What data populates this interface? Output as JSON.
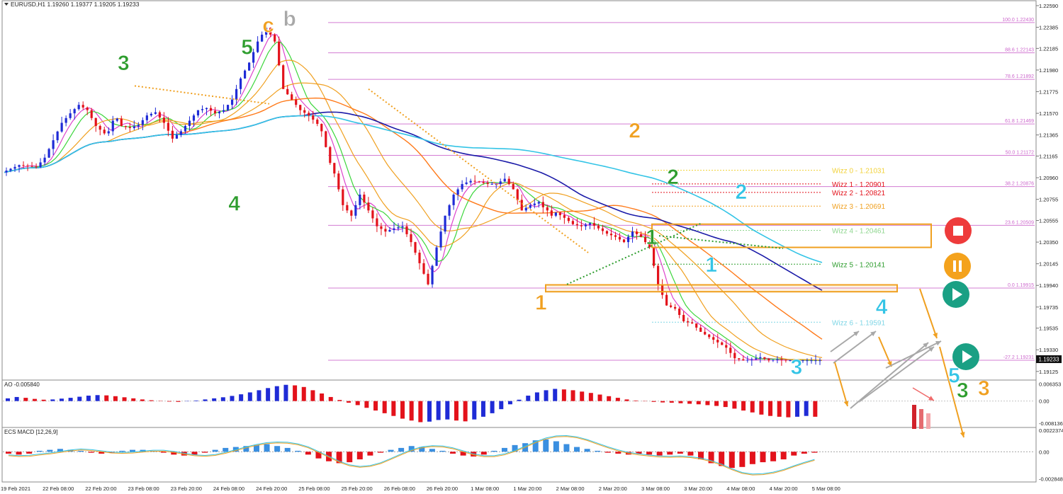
{
  "header": {
    "symbol_info": "EURUSD,H1  1.19260 1.19377 1.19205 1.19233"
  },
  "colors": {
    "bull": "#1f2bd6",
    "bear": "#e3121b",
    "fib": "#cc66cc",
    "orange": "#f0a020",
    "green_wave": "#2e9d2e",
    "cyan_wave": "#33c4e6",
    "grey_wave": "#a8a8a8"
  },
  "chart_data": {
    "type": "line",
    "title": "",
    "price_axis": {
      "ticks": [
        "1.22590",
        "1.22385",
        "1.22185",
        "1.21980",
        "1.21775",
        "1.21570",
        "1.21365",
        "1.21165",
        "1.20960",
        "1.20755",
        "1.20555",
        "1.20350",
        "1.20145",
        "1.19940",
        "1.19735",
        "1.19535",
        "1.19330",
        "1.19125"
      ],
      "current_price": "1.19233",
      "ylim": [
        1.1905,
        1.2263
      ]
    },
    "time_axis": {
      "ticks": [
        "19 Feb 2021",
        "22 Feb 08:00",
        "22 Feb 20:00",
        "23 Feb 08:00",
        "23 Feb 20:00",
        "24 Feb 08:00",
        "24 Feb 20:00",
        "25 Feb 08:00",
        "25 Feb 20:00",
        "26 Feb 08:00",
        "26 Feb 20:00",
        "1 Mar 08:00",
        "1 Mar 20:00",
        "2 Mar 08:00",
        "2 Mar 20:00",
        "3 Mar 08:00",
        "3 Mar 20:00",
        "4 Mar 08:00",
        "4 Mar 20:00",
        "5 Mar 08:00"
      ]
    },
    "price_path": {
      "x": [
        0,
        4,
        8,
        10,
        14,
        16,
        18,
        20,
        22,
        24,
        25,
        26,
        27,
        28,
        30,
        32,
        34,
        36,
        38,
        40,
        42,
        44,
        46,
        48,
        50,
        52,
        54,
        56,
        58,
        60,
        62,
        64,
        66,
        68,
        70,
        72,
        74,
        75,
        76,
        77,
        78,
        79,
        80,
        82,
        84,
        86,
        88,
        90,
        92,
        94,
        96,
        98,
        100,
        102,
        104,
        106,
        108,
        110,
        112,
        114,
        116,
        118,
        120,
        122,
        124,
        126,
        127,
        128,
        129,
        130,
        132,
        134,
        136,
        138,
        140,
        142,
        144,
        146,
        148,
        150,
        152,
        154,
        156,
        158,
        160,
        162,
        164,
        166,
        168,
        170,
        172,
        174,
        176,
        178,
        180,
        182,
        184,
        186,
        188,
        190,
        192
      ],
      "y": [
        1.2101,
        1.2108,
        1.2106,
        1.2115,
        1.2148,
        1.2157,
        1.2165,
        1.216,
        1.2145,
        1.2138,
        1.214,
        1.215,
        1.2152,
        1.2145,
        1.2143,
        1.2146,
        1.2155,
        1.2158,
        1.2148,
        1.2133,
        1.214,
        1.215,
        1.216,
        1.2162,
        1.2157,
        1.216,
        1.217,
        1.219,
        1.2205,
        1.2225,
        1.2238,
        1.2225,
        1.218,
        1.217,
        1.216,
        1.2155,
        1.2147,
        1.214,
        1.2125,
        1.211,
        1.21,
        1.2085,
        1.207,
        1.206,
        1.208,
        1.2065,
        1.205,
        1.2045,
        1.2048,
        1.205,
        1.2035,
        1.2015,
        1.1995,
        1.203,
        1.206,
        1.208,
        1.209,
        1.2093,
        1.2092,
        1.209,
        1.209,
        1.2095,
        1.2085,
        1.2065,
        1.207,
        1.2073,
        1.2068,
        1.2065,
        1.206,
        1.2063,
        1.2058,
        1.2052,
        1.205,
        1.2053,
        1.2048,
        1.2043,
        1.204,
        1.2035,
        1.2045,
        1.204,
        1.203,
        1.1995,
        1.1975,
        1.1972,
        1.196,
        1.1958,
        1.195,
        1.1945,
        1.194,
        1.1935,
        1.1925,
        1.1923,
        1.1924,
        1.1926,
        1.1923,
        1.1924,
        1.1923,
        1.1923,
        1.1923,
        1.1923,
        1.1923
      ]
    },
    "fib_levels": [
      {
        "label": "100.0 1.22430",
        "value": 1.2243
      },
      {
        "label": "88.6 1.22143",
        "value": 1.22143
      },
      {
        "label": "78.6 1.21892",
        "value": 1.21892
      },
      {
        "label": "61.8 1.21469",
        "value": 1.21469
      },
      {
        "label": "50.0 1.21172",
        "value": 1.21172
      },
      {
        "label": "38.2 1.20876",
        "value": 1.20876
      },
      {
        "label": "23.6 1.20509",
        "value": 1.20509
      },
      {
        "label": "0.0 1.19915",
        "value": 1.19915
      },
      {
        "label": "-27.2 1.19231",
        "value": 1.19231
      }
    ],
    "wizz_levels": [
      {
        "label": "Wizz 0 - 1.21031",
        "value": 1.21031,
        "color": "#f2d23a"
      },
      {
        "label": "Wizz 1 - 1.20901",
        "value": 1.20901,
        "color": "#e3121b"
      },
      {
        "label": "Wizz 2 - 1.20821",
        "value": 1.20821,
        "color": "#e3121b"
      },
      {
        "label": "Wizz 3 - 1.20691",
        "value": 1.20691,
        "color": "#f0a020"
      },
      {
        "label": "Wizz 4 - 1.20461",
        "value": 1.20461,
        "color": "#8fd68f"
      },
      {
        "label": "Wizz 5 - 1.20141",
        "value": 1.20141,
        "color": "#2e9d2e"
      },
      {
        "label": "Wizz 6 - 1.19591",
        "value": 1.19591,
        "color": "#7fd6e6"
      }
    ],
    "wave_labels": [
      {
        "text": "3",
        "color": "green",
        "x": 28,
        "y": 1.2198
      },
      {
        "text": "4",
        "color": "green",
        "x": 54,
        "y": 1.2065
      },
      {
        "text": "5",
        "color": "green",
        "x": 57,
        "y": 1.2213
      },
      {
        "text": "c",
        "color": "orange",
        "x": 62,
        "y": 1.2234
      },
      {
        "text": "b",
        "color": "grey",
        "x": 67,
        "y": 1.224
      },
      {
        "text": "1",
        "color": "orange",
        "x": 126,
        "y": 1.1971
      },
      {
        "text": "2",
        "color": "orange",
        "x": 148,
        "y": 1.2134
      },
      {
        "text": "1",
        "color": "green",
        "x": 152,
        "y": 1.2033
      },
      {
        "text": "2",
        "color": "green",
        "x": 157,
        "y": 1.209
      },
      {
        "text": "1",
        "color": "cyan",
        "x": 166,
        "y": 1.2007
      },
      {
        "text": "2",
        "color": "cyan",
        "x": 173,
        "y": 1.2076
      },
      {
        "text": "3",
        "color": "cyan",
        "x": 186,
        "y": 1.191
      },
      {
        "text": "4",
        "color": "cyan",
        "x": 206,
        "y": 1.1967
      },
      {
        "text": "5",
        "color": "cyan",
        "x": 223,
        "y": 1.1902
      },
      {
        "text": "3",
        "color": "green",
        "x": 225,
        "y": 1.1888
      },
      {
        "text": "3",
        "color": "orange",
        "x": 230,
        "y": 1.189
      }
    ],
    "ao_panel": {
      "label": "AO -0.005840",
      "ticks": [
        "0.006353",
        "0.00",
        "-0.008136"
      ],
      "ylim": [
        -0.0095,
        0.0075
      ],
      "values": [
        0.001,
        0.0015,
        0.0012,
        0.0008,
        0.0005,
        0.0006,
        0.0009,
        0.0012,
        0.0016,
        0.002,
        0.0022,
        0.0021,
        0.0018,
        0.0014,
        0.001,
        0.0006,
        0.0003,
        0.0001,
        -0.0002,
        -0.0003,
        -0.0001,
        0.0002,
        0.0006,
        0.001,
        0.0014,
        0.0019,
        0.0025,
        0.0032,
        0.004,
        0.0048,
        0.0055,
        0.006,
        0.0058,
        0.0052,
        0.004,
        0.0028,
        0.0015,
        0.0004,
        -0.0006,
        -0.0015,
        -0.0025,
        -0.0035,
        -0.0045,
        -0.0055,
        -0.0065,
        -0.0072,
        -0.0078,
        -0.0076,
        -0.007,
        -0.0068,
        -0.0072,
        -0.0075,
        -0.0068,
        -0.0058,
        -0.0045,
        -0.003,
        -0.0012,
        0.0005,
        0.002,
        0.0032,
        0.004,
        0.0045,
        0.0043,
        0.004,
        0.0035,
        0.003,
        0.0024,
        0.0018,
        0.0012,
        0.0006,
        0.0002,
        -0.0001,
        -0.0003,
        -0.0005,
        -0.0006,
        -0.0008,
        -0.001,
        -0.0012,
        -0.0015,
        -0.0018,
        -0.0022,
        -0.0028,
        -0.0035,
        -0.0042,
        -0.005,
        -0.0055,
        -0.0058,
        -0.006,
        -0.0058,
        -0.0055,
        -0.0058
      ]
    },
    "macd_panel": {
      "label": "ECS MACD [12,26,9]",
      "ticks": [
        "0.0022374",
        "0.00",
        "-0.002848"
      ],
      "ylim": [
        -0.0031,
        0.0024
      ],
      "hist": [
        -0.0002,
        -0.0003,
        -0.0002,
        0.0001,
        0.0002,
        0.0003,
        0.0002,
        0.0001,
        -0.0001,
        -0.0002,
        -0.0001,
        0.0001,
        0.0002,
        0.0002,
        0.0001,
        -0.0001,
        -0.0003,
        -0.0004,
        -0.0003,
        -0.0001,
        0.0002,
        0.0004,
        0.0005,
        0.0006,
        0.0007,
        0.0008,
        0.0006,
        0.0004,
        0.0001,
        -0.0003,
        -0.0007,
        -0.001,
        -0.0012,
        -0.0011,
        -0.0008,
        -0.0004,
        -0.0001,
        0.0002,
        0.0004,
        0.0006,
        0.0005,
        0.0003,
        0.0001,
        -0.0002,
        -0.0004,
        -0.0005,
        -0.0003,
        0.0001,
        0.0004,
        0.0007,
        0.0009,
        0.0012,
        0.0013,
        0.0011,
        0.0008,
        0.0005,
        0.0003,
        0.0001,
        -0.0001,
        -0.0002,
        -0.0003,
        -0.0002,
        -0.0003,
        -0.0004,
        -0.0003,
        -0.0002,
        -0.0004,
        -0.0008,
        -0.0012,
        -0.0015,
        -0.0017,
        -0.0016,
        -0.0013,
        -0.0011,
        -0.001,
        -0.0008,
        -0.0004,
        -0.0002,
        -0.0001
      ]
    }
  }
}
